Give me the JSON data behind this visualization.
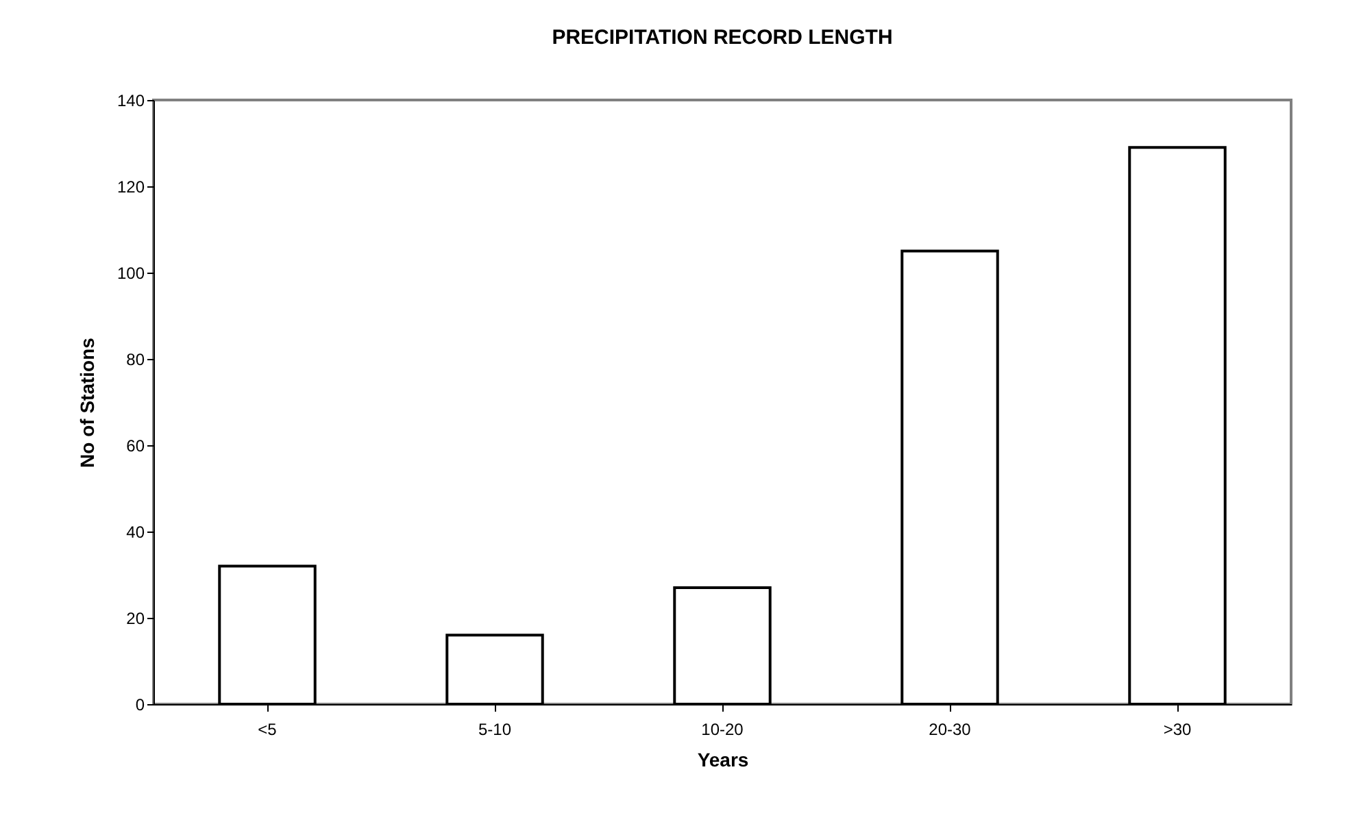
{
  "chart_data": {
    "type": "bar",
    "title": "PRECIPITATION  RECORD  LENGTH",
    "xlabel": "Years",
    "ylabel": "No of Stations",
    "categories": [
      "<5",
      "5-10",
      "10-20",
      "20-30",
      ">30"
    ],
    "values": [
      32,
      16,
      27,
      105,
      129
    ],
    "color": "#ffffff",
    "ylim": [
      0,
      140
    ],
    "yticks": [
      0,
      20,
      40,
      60,
      80,
      100,
      120,
      140
    ],
    "grid": false
  }
}
